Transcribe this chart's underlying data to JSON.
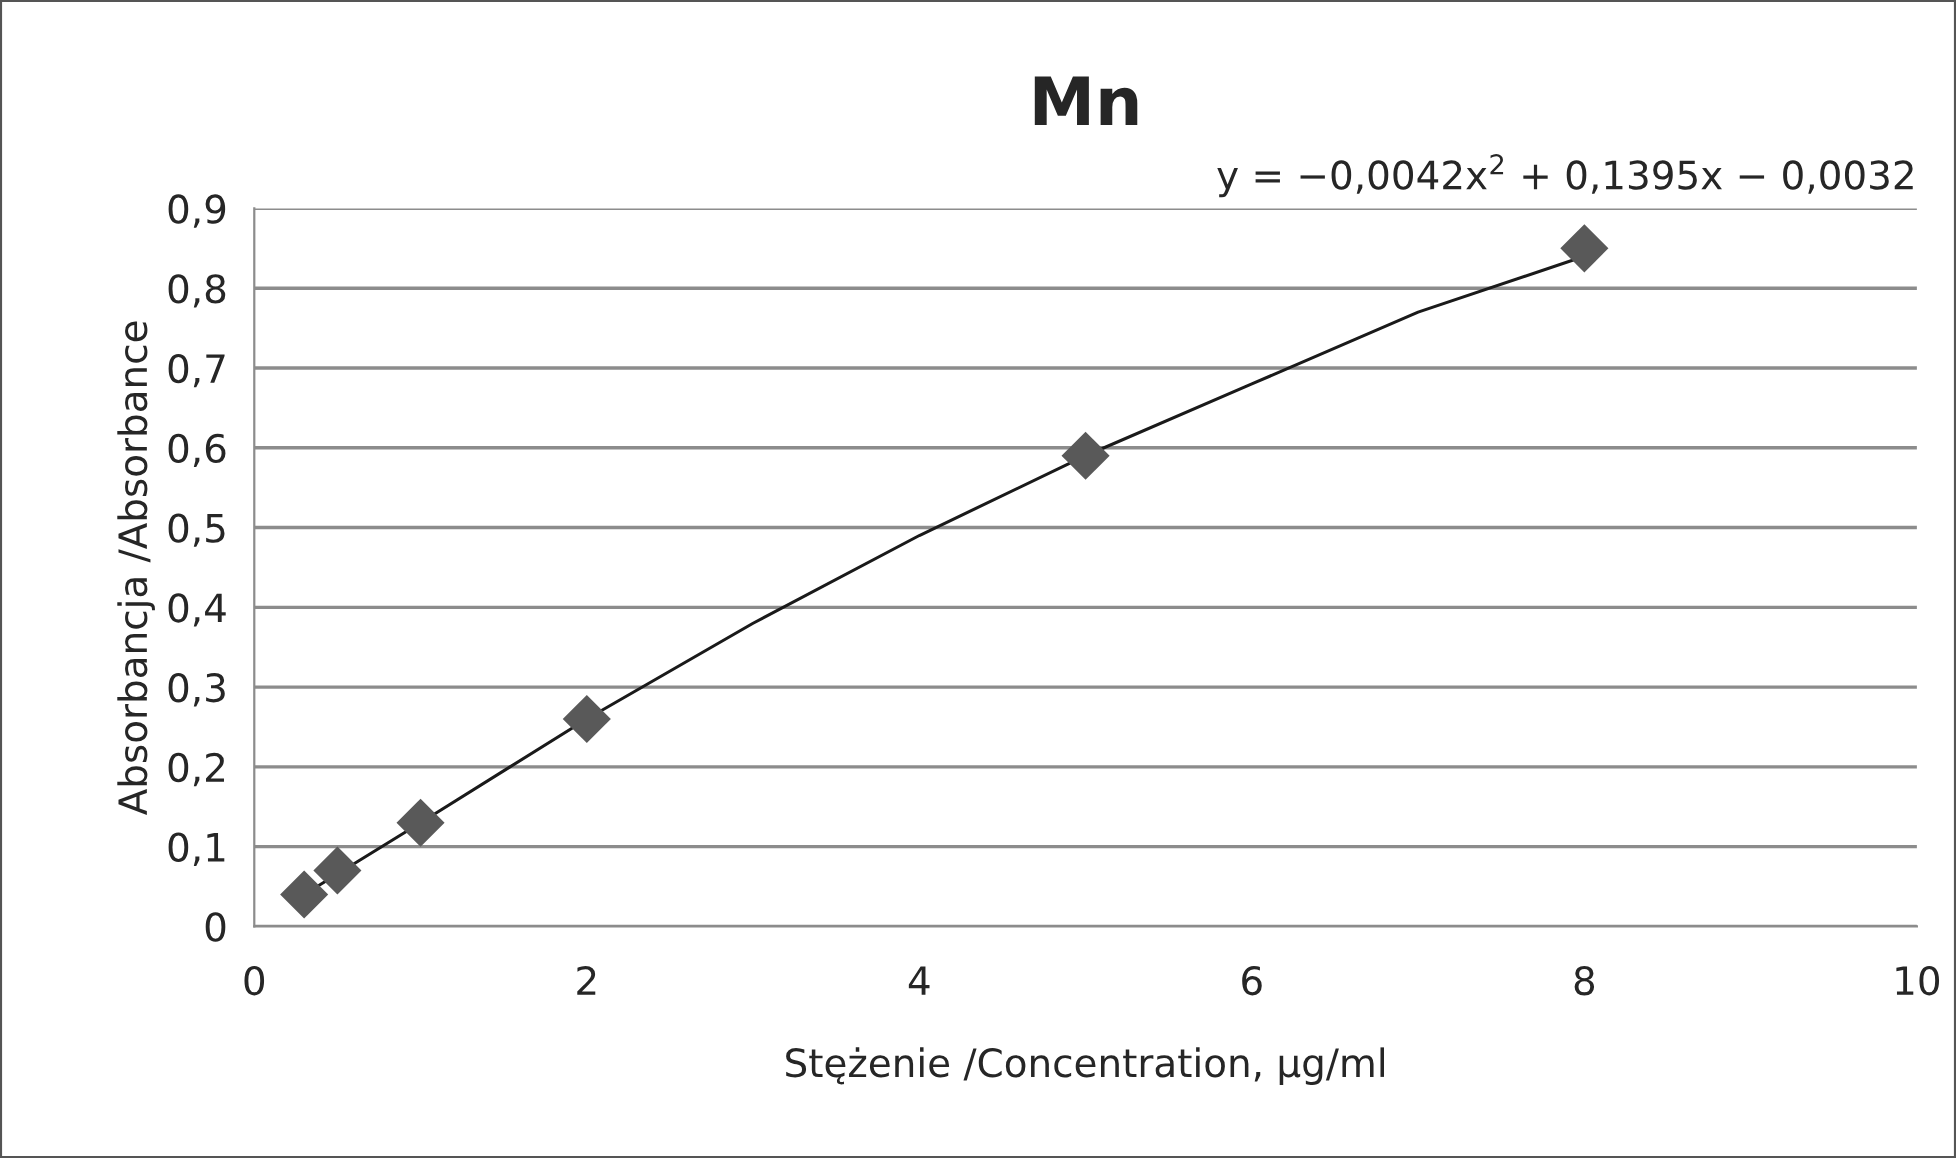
{
  "chart_data": {
    "type": "scatter",
    "title": "Mn",
    "xlabel": "Stężenie /Concentration, µg/ml",
    "ylabel": "Absorbancja /Absorbance",
    "annotations": [
      "y = −0,0042x$^{2}$ + 0,1395x − 0,0032"
    ],
    "x": [
      0.3,
      0.5,
      1,
      2,
      5,
      8
    ],
    "series": [
      {
        "color": "#595959",
        "marker": "diamond",
        "values": [
          0.04,
          0.07,
          0.13,
          0.26,
          0.59,
          0.85
        ]
      },
      {
        "type": "line",
        "color": "#1a1a1a",
        "marker": "none",
        "line_style": "solid",
        "x": [
          0.3,
          1,
          2,
          3,
          4,
          5,
          6,
          7,
          8
        ],
        "values": [
          0.04,
          0.13,
          0.26,
          0.38,
          0.49,
          0.59,
          0.68,
          0.77,
          0.84
        ]
      }
    ],
    "xlim": [
      0,
      10
    ],
    "xticks": [
      0,
      2,
      4,
      6,
      8,
      10
    ],
    "ylim": [
      0,
      0.9
    ],
    "yticks": [
      0,
      {
        "value": 0.1,
        "label": "0,1"
      },
      {
        "value": 0.2,
        "label": "0,2"
      },
      {
        "value": 0.3,
        "label": "0,3"
      },
      {
        "value": 0.4,
        "label": "0,4"
      },
      {
        "value": 0.5,
        "label": "0,5"
      },
      {
        "value": 0.6,
        "label": "0,6"
      },
      {
        "value": 0.7,
        "label": "0,7"
      },
      {
        "value": 0.8,
        "label": "0,8"
      },
      {
        "value": 0.9,
        "label": "0,9"
      }
    ],
    "grid": "y",
    "legend": false
  }
}
